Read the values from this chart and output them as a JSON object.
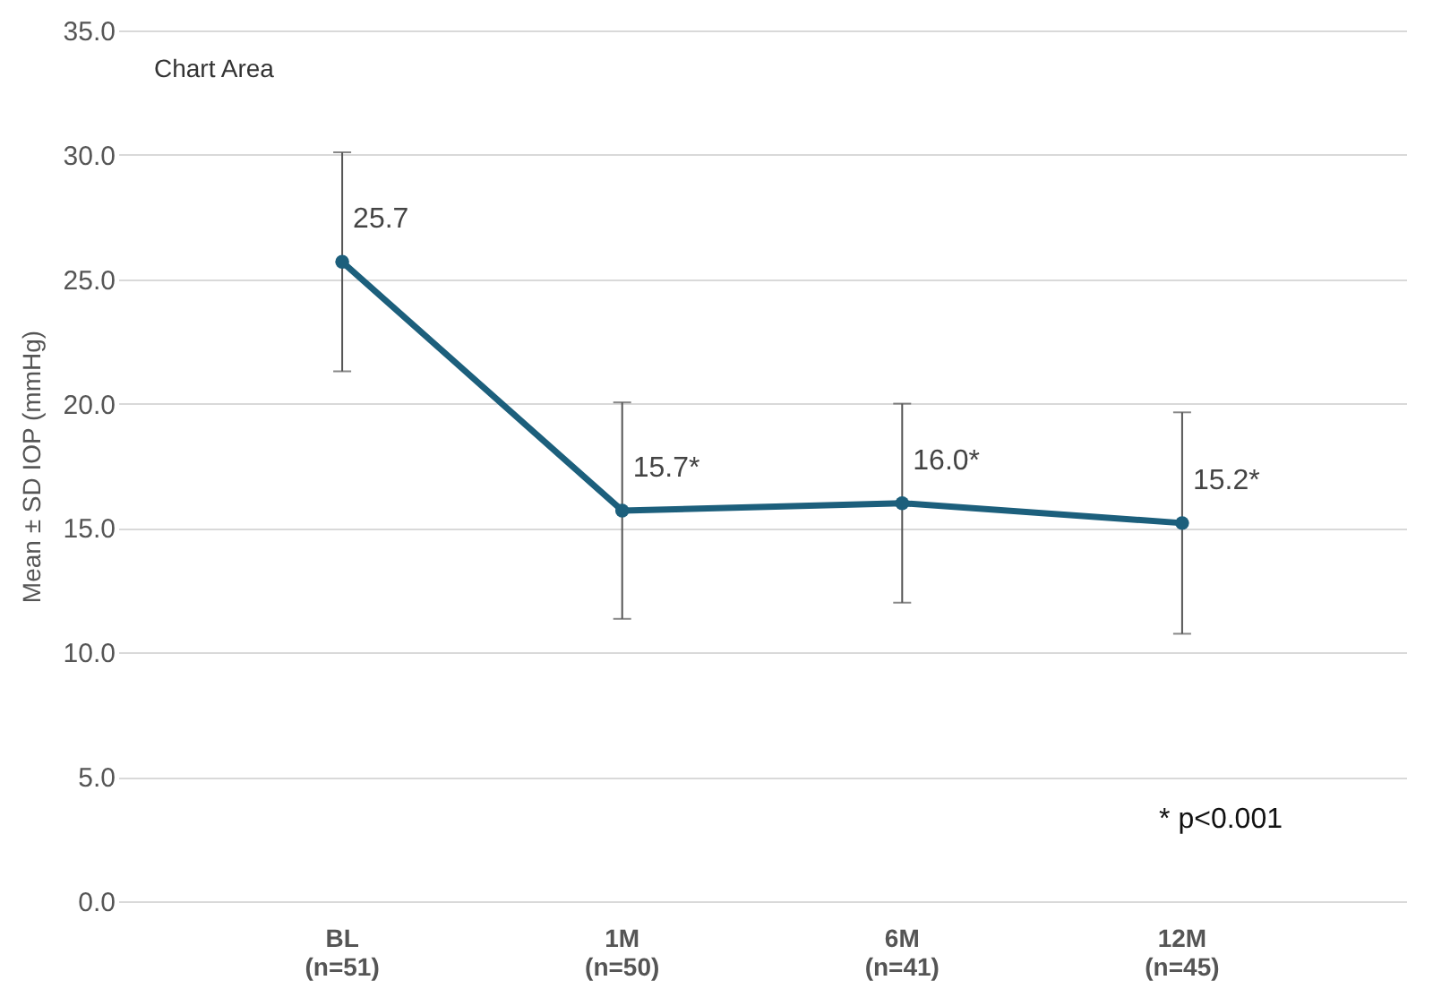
{
  "chart_data": {
    "type": "line",
    "ylabel": "Mean ± SD IOP (mmHg)",
    "categories": [
      "BL\n(n=51)",
      "1M\n(n=50)",
      "6M\n(n=41)",
      "12M\n(n=45)"
    ],
    "series": [
      {
        "color": "#1c5f7c",
        "values": [
          25.7,
          15.7,
          16.0,
          15.2
        ],
        "errors": [
          4.4,
          4.35,
          4.0,
          4.45
        ],
        "value_labels": [
          "25.7",
          "15.7*",
          "16.0*",
          "15.2*"
        ]
      }
    ],
    "ylim": [
      0,
      35
    ],
    "yticks": [
      {
        "value": 0,
        "label": "0.0"
      },
      {
        "value": 5,
        "label": "5.0"
      },
      {
        "value": 10,
        "label": "10.0"
      },
      {
        "value": 15,
        "label": "15.0"
      },
      {
        "value": 20,
        "label": "20.0"
      },
      {
        "value": 25,
        "label": "25.0"
      },
      {
        "value": 30,
        "label": "30.0"
      },
      {
        "value": 35,
        "label": "35.0"
      }
    ],
    "grid": "y",
    "marker": "circle",
    "legend": false,
    "annotations": [
      "Chart Area",
      "* p<0.001"
    ]
  }
}
